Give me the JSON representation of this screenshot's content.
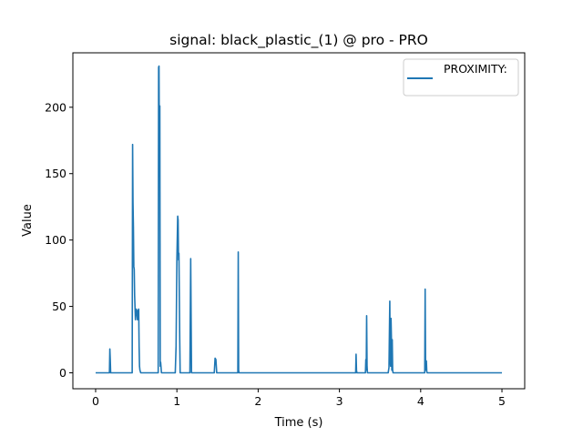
{
  "chart_data": {
    "type": "line",
    "title": "signal: black_plastic_(1) @ pro - PRO",
    "xlabel": "Time (s)",
    "ylabel": "Value",
    "xlim": [
      -0.28,
      5.28
    ],
    "ylim": [
      -12,
      241
    ],
    "xticks": [
      0,
      1,
      2,
      3,
      4,
      5
    ],
    "xtick_labels": [
      "0",
      "1",
      "2",
      "3",
      "4",
      "5"
    ],
    "yticks": [
      0,
      50,
      100,
      150,
      200
    ],
    "ytick_labels": [
      "0",
      "50",
      "100",
      "150",
      "200"
    ],
    "grid": false,
    "legend_position": "top-right",
    "color": "#1f77b4",
    "series": [
      {
        "name": "PROXIMITY:",
        "x": [
          0,
          0.17,
          0.175,
          0.18,
          0.185,
          0.19,
          0.45,
          0.455,
          0.46,
          0.465,
          0.47,
          0.475,
          0.48,
          0.49,
          0.5,
          0.51,
          0.515,
          0.52,
          0.525,
          0.53,
          0.535,
          0.54,
          0.545,
          0.55,
          0.555,
          0.56,
          0.57,
          0.77,
          0.775,
          0.78,
          0.785,
          0.79,
          0.795,
          0.8,
          0.81,
          0.98,
          0.99,
          1.0,
          1.01,
          1.015,
          1.02,
          1.025,
          1.03,
          1.035,
          1.04,
          1.05,
          1.16,
          1.17,
          1.18,
          1.19,
          1.2,
          1.46,
          1.47,
          1.48,
          1.49,
          1.75,
          1.755,
          1.76,
          1.765,
          1.77,
          3.2,
          3.205,
          3.21,
          3.215,
          3.22,
          3.32,
          3.325,
          3.33,
          3.335,
          3.34,
          3.345,
          3.35,
          3.6,
          3.61,
          3.62,
          3.625,
          3.63,
          3.635,
          3.64,
          3.645,
          3.65,
          3.655,
          3.66,
          4.05,
          4.055,
          4.06,
          4.065,
          4.07,
          4.075,
          4.08,
          4.09,
          5.0
        ],
        "values": [
          0,
          0,
          18,
          10,
          0,
          0,
          0,
          172,
          128,
          110,
          80,
          78,
          58,
          40,
          48,
          45,
          40,
          47,
          45,
          48,
          20,
          5,
          2,
          1,
          0,
          0,
          0,
          0,
          230,
          231,
          160,
          201,
          5,
          8,
          0,
          0,
          20,
          86,
          118,
          115,
          85,
          90,
          58,
          25,
          0,
          0,
          0,
          86,
          0,
          0,
          0,
          0,
          11,
          10,
          0,
          0,
          91,
          2,
          0,
          0,
          0,
          14,
          2,
          0,
          0,
          0,
          10,
          2,
          43,
          5,
          0,
          0,
          0,
          4,
          54,
          10,
          5,
          41,
          26,
          2,
          25,
          2,
          0,
          0,
          63,
          6,
          2,
          9,
          1,
          0,
          0,
          0
        ]
      }
    ]
  }
}
